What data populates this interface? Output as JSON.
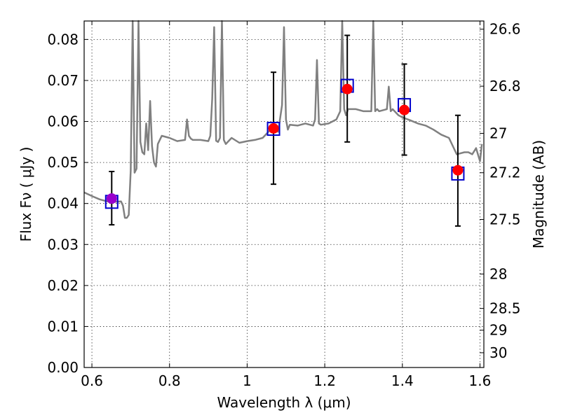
{
  "chart_data": {
    "type": "scatter",
    "title": "",
    "xlabel": "Wavelength  λ (μm)",
    "ylabel": "Flux  Fν  ( μJy )",
    "ylabel_right": "Magnitude (AB)",
    "xlim": [
      0.58,
      1.61
    ],
    "ylim": [
      0.0,
      0.0845
    ],
    "grid": true,
    "x_ticks": [
      0.6,
      0.8,
      1.0,
      1.2,
      1.4,
      1.6
    ],
    "x_tick_labels": [
      "0.6",
      "0.8",
      "1",
      "1.2",
      "1.4",
      "1.6"
    ],
    "y_ticks": [
      0.0,
      0.01,
      0.02,
      0.03,
      0.04,
      0.05,
      0.06,
      0.07,
      0.08
    ],
    "y_tick_labels": [
      "0.00",
      "0.01",
      "0.02",
      "0.03",
      "0.04",
      "0.05",
      "0.06",
      "0.07",
      "0.08"
    ],
    "right_ticks": [
      {
        "label": "26.6",
        "flux": 0.0825
      },
      {
        "label": "26.8",
        "flux": 0.0686
      },
      {
        "label": "27",
        "flux": 0.0571
      },
      {
        "label": "27.2",
        "flux": 0.0475
      },
      {
        "label": "27.5",
        "flux": 0.0361
      },
      {
        "label": "28",
        "flux": 0.0228
      },
      {
        "label": "28.5",
        "flux": 0.0144
      },
      {
        "label": "29",
        "flux": 0.0091
      },
      {
        "label": "30",
        "flux": 0.0036
      }
    ],
    "series": [
      {
        "marker": "square-open",
        "color": "#0000cc",
        "x": [
          0.651,
          1.068,
          1.258,
          1.405,
          1.543
        ],
        "y": [
          0.0404,
          0.0582,
          0.0687,
          0.064,
          0.0473
        ]
      },
      {
        "marker": "circle-filled",
        "color": "#ff0000",
        "x": [
          0.651,
          1.068,
          1.258,
          1.405,
          1.543
        ],
        "y": [
          0.0412,
          0.0583,
          0.0679,
          0.0628,
          0.0481
        ],
        "yerr_low": [
          0.0348,
          0.0447,
          0.055,
          0.0518,
          0.0345
        ],
        "yerr_high": [
          0.0478,
          0.072,
          0.081,
          0.074,
          0.0615
        ],
        "first_point_color": "#9900cc"
      },
      {
        "type": "line",
        "color": "#808080",
        "x": [
          0.58,
          0.6,
          0.62,
          0.64,
          0.66,
          0.675,
          0.68,
          0.685,
          0.69,
          0.695,
          0.7,
          0.705,
          0.71,
          0.715,
          0.72,
          0.725,
          0.73,
          0.735,
          0.74,
          0.745,
          0.75,
          0.755,
          0.76,
          0.765,
          0.77,
          0.78,
          0.8,
          0.82,
          0.84,
          0.845,
          0.85,
          0.855,
          0.86,
          0.88,
          0.9,
          0.905,
          0.91,
          0.915,
          0.92,
          0.925,
          0.93,
          0.935,
          0.94,
          0.945,
          0.95,
          0.96,
          0.98,
          1.0,
          1.02,
          1.04,
          1.06,
          1.08,
          1.09,
          1.095,
          1.1,
          1.105,
          1.11,
          1.13,
          1.15,
          1.17,
          1.175,
          1.18,
          1.185,
          1.19,
          1.21,
          1.23,
          1.24,
          1.245,
          1.25,
          1.255,
          1.26,
          1.27,
          1.28,
          1.3,
          1.32,
          1.325,
          1.33,
          1.335,
          1.34,
          1.36,
          1.365,
          1.37,
          1.375,
          1.38,
          1.39,
          1.4,
          1.42,
          1.44,
          1.46,
          1.48,
          1.5,
          1.52,
          1.54,
          1.56,
          1.57,
          1.58,
          1.59,
          1.6,
          1.605
        ],
        "y": [
          0.0427,
          0.0418,
          0.041,
          0.0405,
          0.0404,
          0.0405,
          0.0395,
          0.0365,
          0.0365,
          0.0372,
          0.048,
          0.0845,
          0.0475,
          0.0485,
          0.0845,
          0.055,
          0.0525,
          0.052,
          0.0595,
          0.053,
          0.065,
          0.054,
          0.05,
          0.049,
          0.0545,
          0.0565,
          0.056,
          0.0552,
          0.0555,
          0.0605,
          0.0565,
          0.0558,
          0.0555,
          0.0555,
          0.0552,
          0.0565,
          0.0655,
          0.083,
          0.0553,
          0.055,
          0.056,
          0.0845,
          0.0555,
          0.0545,
          0.055,
          0.056,
          0.0548,
          0.0552,
          0.0555,
          0.056,
          0.058,
          0.0575,
          0.064,
          0.083,
          0.0605,
          0.058,
          0.0592,
          0.059,
          0.0595,
          0.059,
          0.0605,
          0.075,
          0.0595,
          0.0592,
          0.0595,
          0.0605,
          0.0625,
          0.0845,
          0.063,
          0.0615,
          0.063,
          0.063,
          0.063,
          0.0625,
          0.0625,
          0.0845,
          0.0625,
          0.063,
          0.0625,
          0.063,
          0.0685,
          0.0625,
          0.063,
          0.0625,
          0.0615,
          0.061,
          0.0603,
          0.0595,
          0.059,
          0.058,
          0.0568,
          0.056,
          0.052,
          0.0525,
          0.0525,
          0.052,
          0.0535,
          0.0503,
          0.0545
        ]
      }
    ]
  }
}
